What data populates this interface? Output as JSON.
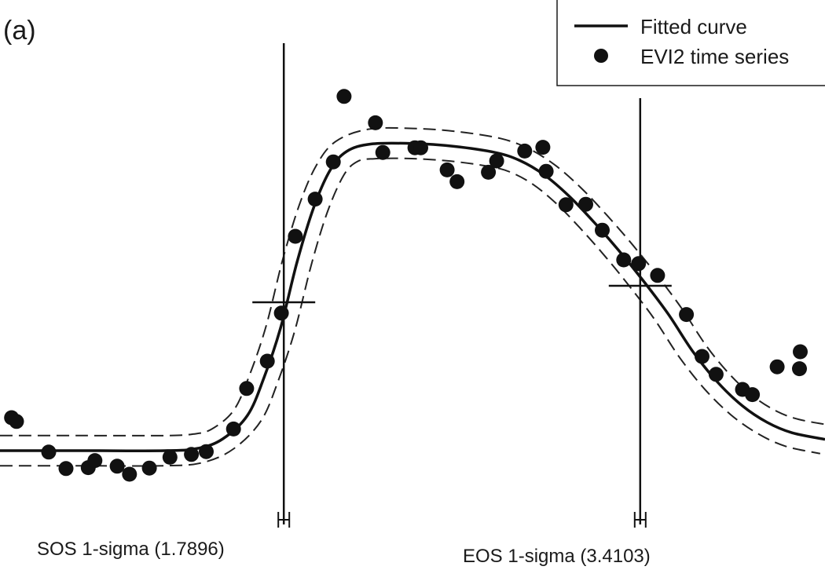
{
  "chart_data": {
    "type": "scatter",
    "panel_label": "(a)",
    "title": "",
    "xlabel": "",
    "ylabel": "",
    "xlim": [
      0,
      100
    ],
    "ylim": [
      0,
      100
    ],
    "grid": false,
    "axes_visible": false,
    "legend": {
      "position": "top-right",
      "entries": [
        {
          "label": "Fitted curve",
          "marker": "line"
        },
        {
          "label": "EVI2 time series",
          "marker": "dot"
        }
      ]
    },
    "series": [
      {
        "name": "EVI2 time series",
        "kind": "scatter",
        "points": [
          [
            1.4,
            18.0
          ],
          [
            2.0,
            17.2
          ],
          [
            5.9,
            10.7
          ],
          [
            8.0,
            7.2
          ],
          [
            10.7,
            7.4
          ],
          [
            11.5,
            8.9
          ],
          [
            14.2,
            7.7
          ],
          [
            15.7,
            6.0
          ],
          [
            18.1,
            7.3
          ],
          [
            20.6,
            9.6
          ],
          [
            23.2,
            10.2
          ],
          [
            25.0,
            10.8
          ],
          [
            28.3,
            15.6
          ],
          [
            29.9,
            24.2
          ],
          [
            32.4,
            30.0
          ],
          [
            34.1,
            40.2
          ],
          [
            35.8,
            56.5
          ],
          [
            38.2,
            64.4
          ],
          [
            40.4,
            72.3
          ],
          [
            41.7,
            86.2
          ],
          [
            45.5,
            80.6
          ],
          [
            46.4,
            74.3
          ],
          [
            50.3,
            75.3
          ],
          [
            51.0,
            75.3
          ],
          [
            54.2,
            70.6
          ],
          [
            55.4,
            68.1
          ],
          [
            59.2,
            70.1
          ],
          [
            60.2,
            72.5
          ],
          [
            63.6,
            74.6
          ],
          [
            65.8,
            75.4
          ],
          [
            66.2,
            70.3
          ],
          [
            68.6,
            63.2
          ],
          [
            71.0,
            63.3
          ],
          [
            73.0,
            57.8
          ],
          [
            75.6,
            51.5
          ],
          [
            77.4,
            50.7
          ],
          [
            79.7,
            48.2
          ],
          [
            83.2,
            39.9
          ],
          [
            85.1,
            31.0
          ],
          [
            86.8,
            27.2
          ],
          [
            90.0,
            24.0
          ],
          [
            91.2,
            22.9
          ],
          [
            94.2,
            28.8
          ],
          [
            96.9,
            28.4
          ],
          [
            97.0,
            32.0
          ]
        ]
      },
      {
        "name": "Fitted curve",
        "kind": "line",
        "points": [
          [
            0,
            11.0
          ],
          [
            10,
            11.0
          ],
          [
            20,
            11.0
          ],
          [
            24,
            11.5
          ],
          [
            27,
            13.5
          ],
          [
            30,
            18.5
          ],
          [
            32,
            26.5
          ],
          [
            34,
            37.0
          ],
          [
            36,
            51.0
          ],
          [
            38,
            62.5
          ],
          [
            40,
            70.5
          ],
          [
            42,
            74.5
          ],
          [
            45,
            76.1
          ],
          [
            50,
            76.2
          ],
          [
            55,
            75.6
          ],
          [
            60,
            74.3
          ],
          [
            63,
            72.6
          ],
          [
            66,
            69.5
          ],
          [
            69,
            65.0
          ],
          [
            72,
            59.5
          ],
          [
            75,
            53.5
          ],
          [
            78,
            47.0
          ],
          [
            81,
            40.0
          ],
          [
            84,
            32.0
          ],
          [
            87,
            25.5
          ],
          [
            90,
            20.5
          ],
          [
            93,
            17.0
          ],
          [
            96,
            14.8
          ],
          [
            100,
            13.4
          ]
        ]
      }
    ],
    "uncertainty_band": {
      "style": "dashed",
      "half_width": 3.2
    },
    "markers": [
      {
        "id": "sos",
        "label": "SOS 1-sigma (1.7896)",
        "x": 34.4,
        "y": 42.5
      },
      {
        "id": "eos",
        "label": "EOS 1-sigma (3.4103)",
        "x": 77.6,
        "y": 46.0
      }
    ]
  }
}
